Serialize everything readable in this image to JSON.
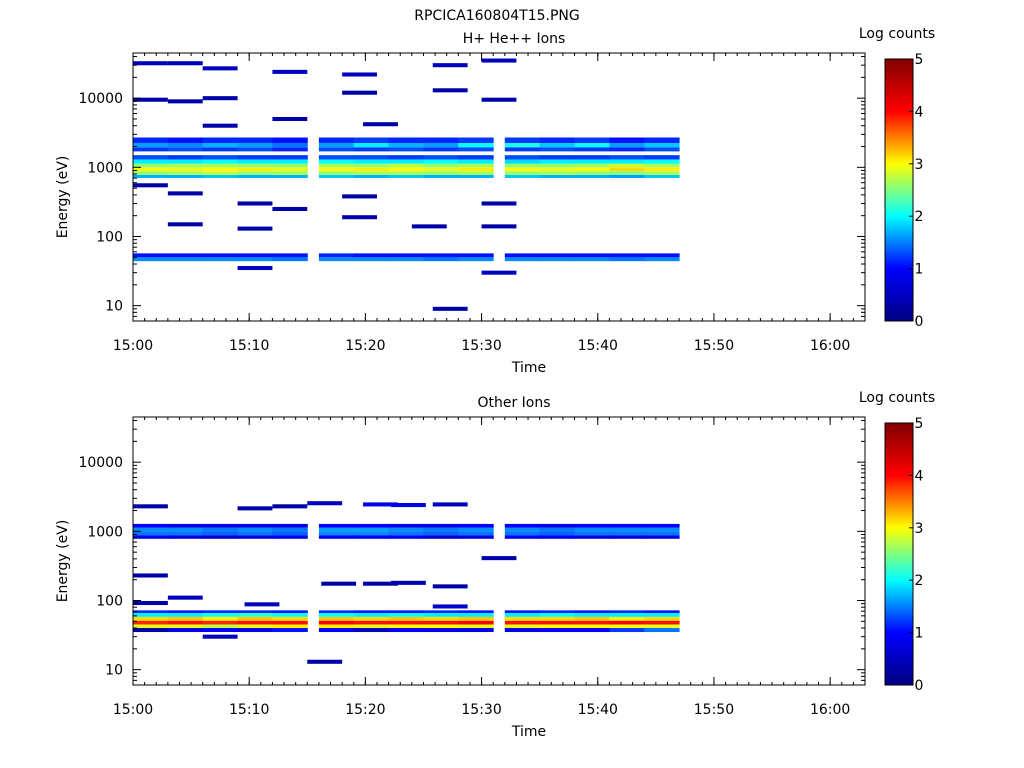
{
  "figure_title": "RPCICA160804T15.PNG",
  "colorbar_gradient": [
    "#000080",
    "#0000ff",
    "#00ffff",
    "#ffff00",
    "#ff0000",
    "#800000"
  ],
  "chart_data": [
    {
      "type": "heatmap",
      "title": "H+ He++ Ions",
      "xlabel": "Time",
      "ylabel": "Energy (eV)",
      "xticks": [
        "15:00",
        "15:10",
        "15:20",
        "15:30",
        "15:40",
        "15:50",
        "16:00"
      ],
      "xlim": [
        "15:00",
        "16:03"
      ],
      "yscale": "log",
      "ylim": [
        6,
        45000
      ],
      "yticks": [
        10,
        100,
        1000,
        10000
      ],
      "ytick_labels": [
        "10",
        "100",
        "1000",
        "10000"
      ],
      "colorbar": {
        "label": "Log counts",
        "range": [
          0,
          5
        ],
        "tick_labels": [
          "0",
          "1",
          "2",
          "3",
          "4",
          "5"
        ]
      },
      "time_bins": [
        "15:00",
        "15:03",
        "15:06",
        "15:09",
        "15:12",
        "15:16",
        "15:19",
        "15:22",
        "15:25",
        "15:28",
        "15:32",
        "15:35",
        "15:38",
        "15:41",
        "15:44"
      ],
      "bands": [
        {
          "emin": 700,
          "emax": 780,
          "values": [
            1.5,
            1.5,
            1.6,
            1.5,
            1.5,
            1.6,
            1.5,
            1.6,
            1.5,
            1.5,
            1.6,
            1.5,
            1.5,
            1.4,
            1.6
          ]
        },
        {
          "emin": 780,
          "emax": 880,
          "values": [
            2.6,
            2.7,
            2.8,
            2.6,
            2.7,
            2.6,
            2.7,
            2.7,
            2.6,
            2.7,
            2.6,
            2.7,
            2.6,
            2.5,
            2.7
          ]
        },
        {
          "emin": 880,
          "emax": 1000,
          "values": [
            3.1,
            3.0,
            3.1,
            3.2,
            3.0,
            3.1,
            3.2,
            3.1,
            3.0,
            3.2,
            3.1,
            3.0,
            3.1,
            3.3,
            3.2
          ]
        },
        {
          "emin": 1000,
          "emax": 1130,
          "values": [
            2.6,
            2.7,
            2.7,
            2.6,
            2.6,
            2.7,
            2.6,
            2.8,
            2.6,
            2.7,
            2.6,
            2.6,
            2.7,
            2.9,
            2.7
          ]
        },
        {
          "emin": 1130,
          "emax": 1300,
          "values": [
            1.8,
            1.8,
            1.9,
            1.8,
            1.8,
            1.9,
            1.8,
            1.8,
            1.9,
            1.8,
            1.7,
            1.8,
            1.8,
            1.8,
            1.9
          ]
        },
        {
          "emin": 1300,
          "emax": 1500,
          "values": [
            1.0,
            0.9,
            1.0,
            0.9,
            0.9,
            1.0,
            1.0,
            0.9,
            1.0,
            0.9,
            1.0,
            0.9,
            0.9,
            1.0,
            0.9
          ]
        },
        {
          "emin": 1700,
          "emax": 1950,
          "values": [
            0.9,
            1.0,
            0.9,
            1.0,
            0.8,
            1.0,
            0.9,
            1.0,
            0.9,
            1.0,
            0.9,
            1.0,
            0.9,
            0.8,
            1.0
          ]
        },
        {
          "emin": 1950,
          "emax": 2250,
          "values": [
            1.4,
            1.3,
            1.5,
            1.4,
            1.2,
            1.4,
            1.8,
            1.5,
            1.4,
            1.9,
            2.0,
            1.6,
            1.9,
            1.4,
            1.6
          ]
        },
        {
          "emin": 2250,
          "emax": 2700,
          "values": [
            0.8,
            0.7,
            0.8,
            0.8,
            0.7,
            0.8,
            0.9,
            0.8,
            0.8,
            0.9,
            0.9,
            0.8,
            0.9,
            0.7,
            0.8
          ]
        },
        {
          "emin": 44,
          "emax": 50,
          "values": [
            1.3,
            1.3,
            1.3,
            1.3,
            1.2,
            1.3,
            1.3,
            1.3,
            1.2,
            1.3,
            1.3,
            1.3,
            1.3,
            1.2,
            1.3
          ]
        },
        {
          "emin": 50,
          "emax": 57,
          "values": [
            0.7,
            0.7,
            0.7,
            0.7,
            0.7,
            0.8,
            0.7,
            0.7,
            0.7,
            0.7,
            0.7,
            0.7,
            0.7,
            0.7,
            0.7
          ]
        }
      ],
      "sparse_counts": [
        [
          15.0,
          32000,
          0.3
        ],
        [
          15.05,
          32000,
          0.3
        ],
        [
          15.1,
          27000,
          0.3
        ],
        [
          15.2,
          24000,
          0.3
        ],
        [
          15.3,
          22000,
          0.3
        ],
        [
          15.43,
          30000,
          0.3
        ],
        [
          15.5,
          35000,
          0.3
        ],
        [
          15.0,
          9500,
          0.2
        ],
        [
          15.05,
          9000,
          0.2
        ],
        [
          15.1,
          10000,
          0.2
        ],
        [
          15.3,
          12000,
          0.2
        ],
        [
          15.43,
          13000,
          0.2
        ],
        [
          15.5,
          9500,
          0.2
        ],
        [
          15.1,
          4000,
          0.2
        ],
        [
          15.2,
          5000,
          0.2
        ],
        [
          15.33,
          4200,
          0.2
        ],
        [
          15.0,
          550,
          0.2
        ],
        [
          15.05,
          420,
          0.2
        ],
        [
          15.15,
          300,
          0.2
        ],
        [
          15.2,
          250,
          0.2
        ],
        [
          15.3,
          380,
          0.2
        ],
        [
          15.5,
          300,
          0.2
        ],
        [
          15.05,
          150,
          0.2
        ],
        [
          15.15,
          130,
          0.2
        ],
        [
          15.3,
          190,
          0.2
        ],
        [
          15.4,
          140,
          0.2
        ],
        [
          15.5,
          140,
          0.2
        ],
        [
          15.15,
          35,
          0.3
        ],
        [
          15.5,
          30,
          0.3
        ],
        [
          15.43,
          9,
          0.2
        ]
      ]
    },
    {
      "type": "heatmap",
      "title": "Other Ions",
      "xlabel": "Time",
      "ylabel": "Energy (eV)",
      "xticks": [
        "15:00",
        "15:10",
        "15:20",
        "15:30",
        "15:40",
        "15:50",
        "16:00"
      ],
      "xlim": [
        "15:00",
        "16:03"
      ],
      "yscale": "log",
      "ylim": [
        6,
        45000
      ],
      "yticks": [
        10,
        100,
        1000,
        10000
      ],
      "ytick_labels": [
        "10",
        "100",
        "1000",
        "10000"
      ],
      "colorbar": {
        "label": "Log counts",
        "range": [
          0,
          5
        ],
        "tick_labels": [
          "0",
          "1",
          "2",
          "3",
          "4",
          "5"
        ]
      },
      "time_bins": [
        "15:00",
        "15:03",
        "15:06",
        "15:09",
        "15:12",
        "15:16",
        "15:19",
        "15:22",
        "15:25",
        "15:28",
        "15:32",
        "15:35",
        "15:38",
        "15:41",
        "15:44"
      ],
      "bands": [
        {
          "emin": 780,
          "emax": 880,
          "values": [
            0.6,
            0.5,
            0.4,
            0.5,
            0.6,
            0.6,
            0.6,
            0.6,
            0.4,
            0.5,
            0.6,
            0.6,
            0.5,
            0.5,
            0.5
          ]
        },
        {
          "emin": 880,
          "emax": 1000,
          "values": [
            1.2,
            1.2,
            1.1,
            1.2,
            1.1,
            1.3,
            1.3,
            1.2,
            1.1,
            1.2,
            1.2,
            1.1,
            1.2,
            1.2,
            1.2
          ]
        },
        {
          "emin": 1000,
          "emax": 1130,
          "values": [
            1.3,
            1.3,
            1.2,
            1.3,
            1.2,
            1.4,
            1.4,
            1.3,
            1.2,
            1.3,
            1.3,
            1.2,
            1.3,
            1.3,
            1.3
          ]
        },
        {
          "emin": 1130,
          "emax": 1280,
          "values": [
            0.6,
            0.5,
            0.5,
            0.5,
            0.5,
            0.6,
            0.6,
            0.5,
            0.5,
            0.6,
            0.6,
            0.5,
            0.6,
            0.6,
            0.6
          ]
        },
        {
          "emin": 35,
          "emax": 40,
          "values": [
            0.2,
            0.5,
            0.6,
            0.5,
            0.7,
            0.6,
            0.3,
            0.6,
            0.5,
            0.5,
            0.5,
            0.6,
            0.6,
            0.9,
            1.2
          ]
        },
        {
          "emin": 40,
          "emax": 45,
          "values": [
            3.0,
            3.0,
            2.8,
            3.0,
            3.2,
            3.2,
            3.0,
            3.1,
            3.1,
            3.0,
            3.0,
            3.1,
            3.1,
            3.1,
            3.0
          ]
        },
        {
          "emin": 45,
          "emax": 51,
          "values": [
            4.2,
            4.3,
            4.2,
            4.3,
            4.3,
            4.4,
            4.3,
            4.3,
            4.3,
            4.4,
            4.3,
            4.3,
            4.3,
            4.4,
            4.3
          ]
        },
        {
          "emin": 51,
          "emax": 58,
          "values": [
            3.3,
            3.4,
            3.2,
            3.4,
            3.3,
            3.4,
            3.3,
            3.4,
            3.3,
            3.4,
            3.3,
            3.3,
            3.4,
            3.2,
            3.3
          ]
        },
        {
          "emin": 58,
          "emax": 66,
          "values": [
            1.8,
            1.8,
            2.0,
            2.1,
            1.9,
            1.9,
            1.8,
            1.9,
            1.8,
            1.8,
            1.8,
            1.9,
            1.8,
            1.8,
            1.8
          ]
        },
        {
          "emin": 66,
          "emax": 72,
          "values": [
            0.8,
            0.7,
            0.8,
            0.8,
            0.7,
            0.8,
            0.7,
            0.7,
            0.8,
            0.7,
            0.7,
            0.8,
            0.7,
            0.8,
            0.7
          ]
        }
      ],
      "sparse_counts": [
        [
          15.0,
          2300,
          0.2
        ],
        [
          15.15,
          2150,
          0.2
        ],
        [
          15.2,
          2300,
          0.2
        ],
        [
          15.25,
          2550,
          0.3
        ],
        [
          15.33,
          2450,
          0.5
        ],
        [
          15.37,
          2400,
          0.5
        ],
        [
          15.43,
          2450,
          0.3
        ],
        [
          15.0,
          230,
          0.2
        ],
        [
          15.05,
          110,
          0.3
        ],
        [
          15.0,
          92,
          0.2
        ],
        [
          15.16,
          88,
          0.3
        ],
        [
          15.27,
          175,
          0.2
        ],
        [
          15.33,
          175,
          0.2
        ],
        [
          15.37,
          180,
          0.2
        ],
        [
          15.43,
          160,
          0.2
        ],
        [
          15.5,
          410,
          0.2
        ],
        [
          15.1,
          30,
          0.3
        ],
        [
          15.25,
          13,
          0.2
        ],
        [
          15.43,
          82,
          0.4
        ]
      ]
    }
  ]
}
